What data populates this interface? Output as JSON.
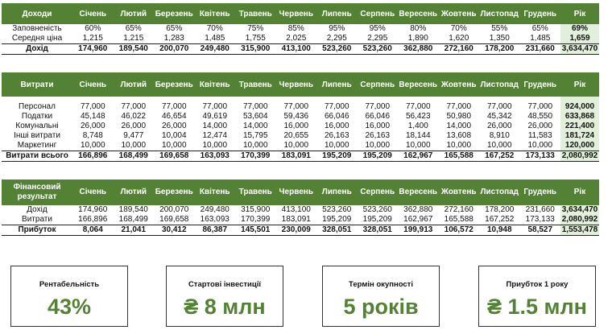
{
  "months": [
    "Січень",
    "Лютий",
    "Березень",
    "Квітень",
    "Травень",
    "Червень",
    "Липень",
    "Серпень",
    "Вересень",
    "Жовтень",
    "Листопад",
    "Грудень"
  ],
  "year_label": "Рік",
  "income": {
    "header": "Доходи",
    "rows": [
      {
        "label": "Заповненість",
        "values": [
          "60%",
          "65%",
          "65%",
          "70%",
          "75%",
          "85%",
          "95%",
          "95%",
          "80%",
          "70%",
          "55%",
          "65%"
        ],
        "year": "69%"
      },
      {
        "label": "Середня ціна",
        "values": [
          "1,215",
          "1,215",
          "1,283",
          "1,485",
          "1,755",
          "2,025",
          "2,295",
          "2,295",
          "1,890",
          "1,620",
          "1,350",
          "1,485"
        ],
        "year": "1,659"
      }
    ],
    "total": {
      "label": "Дохід",
      "values": [
        "174,960",
        "189,540",
        "200,070",
        "249,480",
        "315,900",
        "413,100",
        "523,260",
        "523,260",
        "362,880",
        "272,160",
        "178,200",
        "231,660"
      ],
      "year": "3,634,470"
    }
  },
  "expenses": {
    "header": "Витрати",
    "rows": [
      {
        "label": "Персонал",
        "values": [
          "77,000",
          "77,000",
          "77,000",
          "77,000",
          "77,000",
          "77,000",
          "77,000",
          "77,000",
          "77,000",
          "77,000",
          "77,000",
          "77,000"
        ],
        "year": "924,000"
      },
      {
        "label": "Податки",
        "values": [
          "45,148",
          "46,022",
          "46,654",
          "49,619",
          "53,604",
          "59,436",
          "66,046",
          "66,046",
          "56,423",
          "50,980",
          "45,342",
          "48,550"
        ],
        "year": "633,868"
      },
      {
        "label": "Комунальні",
        "values": [
          "26,000",
          "26,000",
          "26,000",
          "14,000",
          "14,000",
          "16,000",
          "16,000",
          "16,000",
          "1,400",
          "14,000",
          "26,000",
          "26,000"
        ],
        "year": "221,400"
      },
      {
        "label": "Інші витрати",
        "values": [
          "8,748",
          "9,477",
          "10,004",
          "12,474",
          "15,795",
          "20,655",
          "26,163",
          "26,163",
          "18,144",
          "13,608",
          "8,910",
          "11,583"
        ],
        "year": "181,724"
      },
      {
        "label": "Маркетинг",
        "values": [
          "10,000",
          "10,000",
          "10,000",
          "10,000",
          "10,000",
          "10,000",
          "10,000",
          "10,000",
          "10,000",
          "10,000",
          "10,000",
          "10,000"
        ],
        "year": "120,000"
      }
    ],
    "total": {
      "label": "Витрати всього",
      "values": [
        "166,896",
        "168,499",
        "169,658",
        "163,093",
        "170,399",
        "183,091",
        "195,209",
        "195,209",
        "162,967",
        "165,588",
        "167,252",
        "173,133"
      ],
      "year": "2,080,992"
    }
  },
  "financial": {
    "header": "Фінансовий результат",
    "rows": [
      {
        "label": "Дохід",
        "values": [
          "174,960",
          "189,540",
          "200,070",
          "249,480",
          "315,900",
          "413,100",
          "523,260",
          "523,260",
          "362,880",
          "272,160",
          "178,200",
          "231,660"
        ],
        "year": "3,634,470"
      },
      {
        "label": "Витрати",
        "values": [
          "166,896",
          "168,499",
          "169,658",
          "163,093",
          "170,399",
          "183,091",
          "195,209",
          "195,209",
          "162,967",
          "165,588",
          "167,252",
          "173,133"
        ],
        "year": "2,080,992"
      }
    ],
    "total": {
      "label": "Прибуток",
      "values": [
        "8,064",
        "21,041",
        "30,412",
        "86,387",
        "145,501",
        "230,009",
        "328,051",
        "328,051",
        "199,913",
        "106,572",
        "10,948",
        "58,527"
      ],
      "year": "1,553,478"
    }
  },
  "kpis": [
    {
      "title": "Рентабельність",
      "value": "43%"
    },
    {
      "title": "Стартові інвестиції",
      "value": "₴ 8 млн"
    },
    {
      "title": "Термін окупності",
      "value": "5 років"
    },
    {
      "title": "Приубток 1 року",
      "value": "₴ 1.5 млн"
    }
  ],
  "colors": {
    "header_bg": "#548235",
    "year_bg": "#e2efda",
    "kpi_value": "#548235"
  }
}
